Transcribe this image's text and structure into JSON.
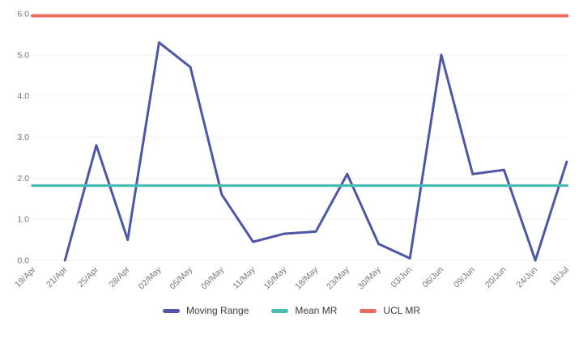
{
  "chart_data": {
    "type": "line",
    "title": "",
    "xlabel": "",
    "ylabel": "",
    "x_categories": [
      "19/Apr",
      "21/Apr",
      "25/Apr",
      "28/Apr",
      "02/May",
      "05/May",
      "09/May",
      "11/May",
      "16/May",
      "18/May",
      "23/May",
      "30/May",
      "03/Jun",
      "06/Jun",
      "09/Jun",
      "20/Jun",
      "24/Jun",
      "18/Jul"
    ],
    "y_ticks": [
      "0.0",
      "1.0",
      "2.0",
      "3.0",
      "4.0",
      "5.0",
      "6.0"
    ],
    "ylim": [
      0,
      6
    ],
    "grid": "horizontal-only",
    "legend_position": "bottom-center",
    "series": [
      {
        "name": "Moving Range",
        "kind": "line",
        "color": "#4e57a5",
        "values": [
          null,
          0,
          2.8,
          0.5,
          5.3,
          4.7,
          1.6,
          0.45,
          0.65,
          0.7,
          2.1,
          0.4,
          0.05,
          5.0,
          2.1,
          2.2,
          0,
          2.4
        ]
      },
      {
        "name": "Mean MR",
        "kind": "hline",
        "color": "#46bcb2",
        "value": 1.82
      },
      {
        "name": "UCL MR",
        "kind": "hline",
        "color": "#ec6a5e",
        "value": 5.95
      }
    ],
    "gridline_color": "#efefef",
    "axis_text_color": "#767676",
    "legend_text_color": "#3c3c3c"
  }
}
